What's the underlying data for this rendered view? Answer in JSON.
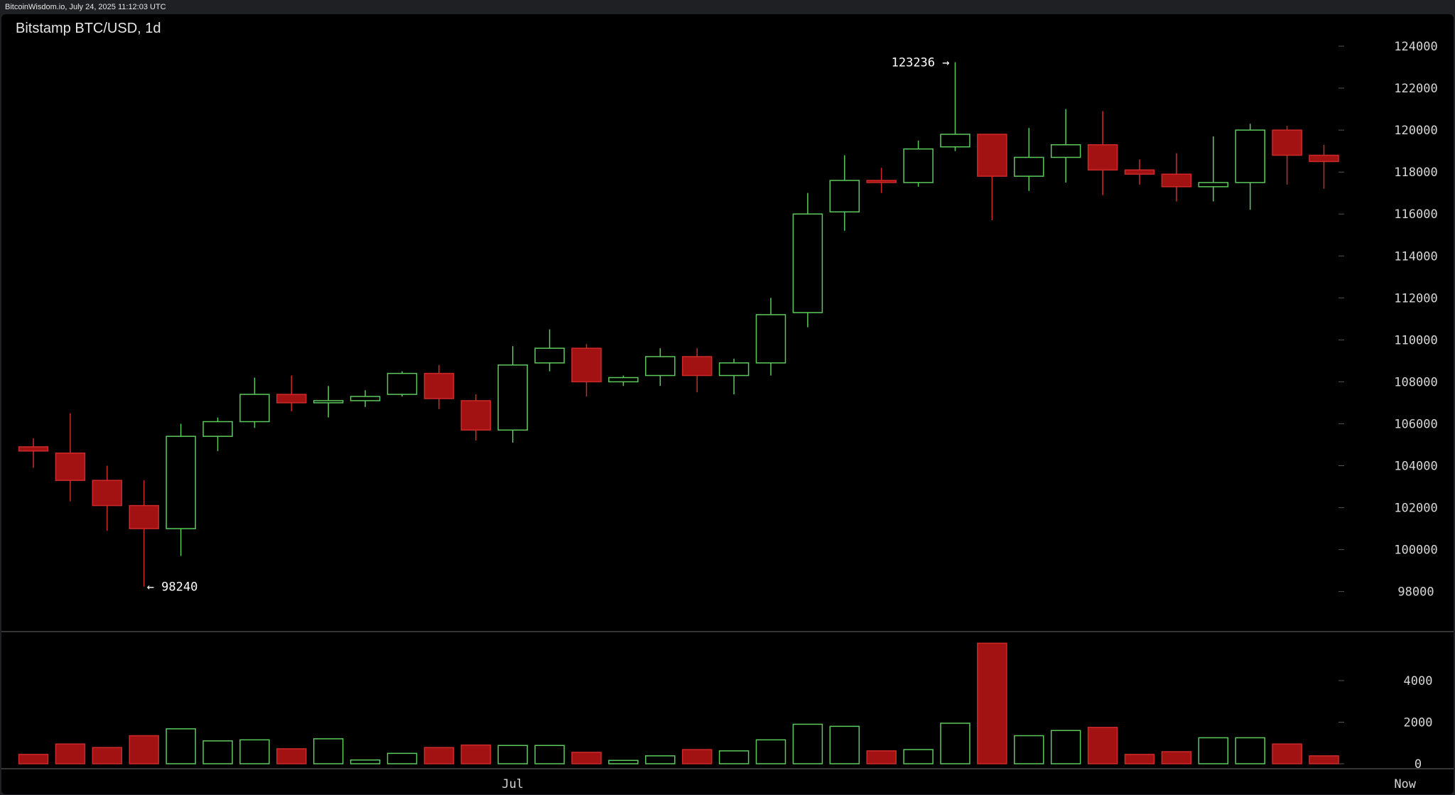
{
  "watermark": "BitcoinWisdom.io, July 24, 2025 11:12:03 UTC",
  "colors": {
    "up": "#5cc95c",
    "down": "#a31212",
    "down_border": "#cc2a2a",
    "grid_tick": "#555555",
    "axis_line": "#6a6a6a",
    "background": "#000000"
  },
  "chart_data": {
    "type": "candlestick",
    "title": "Bitstamp BTC/USD, 1d",
    "price_axis": {
      "range": [
        97000,
        124500
      ],
      "ticks": [
        98000,
        100000,
        102000,
        104000,
        106000,
        108000,
        110000,
        112000,
        114000,
        116000,
        118000,
        120000,
        122000,
        124000
      ]
    },
    "volume_axis": {
      "range": [
        0,
        6000
      ],
      "ticks": [
        0,
        2000,
        4000
      ]
    },
    "time_labels": [
      {
        "label": "Jul",
        "index": 13
      },
      {
        "label": "Now",
        "index": 37.2
      }
    ],
    "annotations": {
      "high": {
        "label": "123236 →",
        "index": 25,
        "value": 123236
      },
      "low": {
        "label": "← 98240",
        "index": 3,
        "value": 98240
      }
    },
    "candles": [
      {
        "open": 104700,
        "high": 105300,
        "low": 103900,
        "close": 104900,
        "volume": 450,
        "dir": "down"
      },
      {
        "open": 104600,
        "high": 106500,
        "low": 102300,
        "close": 103300,
        "volume": 950,
        "dir": "down"
      },
      {
        "open": 103300,
        "high": 104000,
        "low": 100900,
        "close": 102100,
        "volume": 780,
        "dir": "down"
      },
      {
        "open": 102100,
        "high": 103300,
        "low": 98240,
        "close": 101000,
        "volume": 1350,
        "dir": "down"
      },
      {
        "open": 101000,
        "high": 106000,
        "low": 99700,
        "close": 105400,
        "volume": 1680,
        "dir": "up"
      },
      {
        "open": 105400,
        "high": 106300,
        "low": 104700,
        "close": 106100,
        "volume": 1100,
        "dir": "up"
      },
      {
        "open": 106100,
        "high": 108200,
        "low": 105800,
        "close": 107400,
        "volume": 1150,
        "dir": "up"
      },
      {
        "open": 107400,
        "high": 108300,
        "low": 106600,
        "close": 107000,
        "volume": 720,
        "dir": "down"
      },
      {
        "open": 107000,
        "high": 107800,
        "low": 106300,
        "close": 107100,
        "volume": 1200,
        "dir": "up"
      },
      {
        "open": 107100,
        "high": 107600,
        "low": 106800,
        "close": 107300,
        "volume": 180,
        "dir": "up"
      },
      {
        "open": 107400,
        "high": 108500,
        "low": 107300,
        "close": 108400,
        "volume": 500,
        "dir": "up"
      },
      {
        "open": 108400,
        "high": 108800,
        "low": 106700,
        "close": 107200,
        "volume": 780,
        "dir": "down"
      },
      {
        "open": 107100,
        "high": 107400,
        "low": 105200,
        "close": 105700,
        "volume": 900,
        "dir": "down"
      },
      {
        "open": 105700,
        "high": 109700,
        "low": 105100,
        "close": 108800,
        "volume": 880,
        "dir": "up"
      },
      {
        "open": 108900,
        "high": 110500,
        "low": 108500,
        "close": 109600,
        "volume": 880,
        "dir": "up"
      },
      {
        "open": 109600,
        "high": 109800,
        "low": 107300,
        "close": 108000,
        "volume": 550,
        "dir": "down"
      },
      {
        "open": 108000,
        "high": 108300,
        "low": 107800,
        "close": 108200,
        "volume": 160,
        "dir": "up"
      },
      {
        "open": 108300,
        "high": 109600,
        "low": 107800,
        "close": 109200,
        "volume": 380,
        "dir": "up"
      },
      {
        "open": 109200,
        "high": 109600,
        "low": 107500,
        "close": 108300,
        "volume": 680,
        "dir": "down"
      },
      {
        "open": 108300,
        "high": 109100,
        "low": 107400,
        "close": 108900,
        "volume": 620,
        "dir": "up"
      },
      {
        "open": 108900,
        "high": 112000,
        "low": 108300,
        "close": 111200,
        "volume": 1150,
        "dir": "up"
      },
      {
        "open": 111300,
        "high": 117000,
        "low": 110600,
        "close": 116000,
        "volume": 1900,
        "dir": "up"
      },
      {
        "open": 116100,
        "high": 118800,
        "low": 115200,
        "close": 117600,
        "volume": 1800,
        "dir": "up"
      },
      {
        "open": 117600,
        "high": 118200,
        "low": 117000,
        "close": 117500,
        "volume": 620,
        "dir": "down"
      },
      {
        "open": 117500,
        "high": 119500,
        "low": 117300,
        "close": 119100,
        "volume": 680,
        "dir": "up"
      },
      {
        "open": 119200,
        "high": 123236,
        "low": 119000,
        "close": 119800,
        "volume": 1950,
        "dir": "up"
      },
      {
        "open": 119800,
        "high": 119800,
        "low": 115700,
        "close": 117800,
        "volume": 5800,
        "dir": "down"
      },
      {
        "open": 117800,
        "high": 120100,
        "low": 117100,
        "close": 118700,
        "volume": 1350,
        "dir": "up"
      },
      {
        "open": 118700,
        "high": 121000,
        "low": 117500,
        "close": 119300,
        "volume": 1600,
        "dir": "up"
      },
      {
        "open": 119300,
        "high": 120900,
        "low": 116900,
        "close": 118100,
        "volume": 1750,
        "dir": "down"
      },
      {
        "open": 118100,
        "high": 118600,
        "low": 117400,
        "close": 117900,
        "volume": 450,
        "dir": "down"
      },
      {
        "open": 117900,
        "high": 118900,
        "low": 116600,
        "close": 117300,
        "volume": 580,
        "dir": "down"
      },
      {
        "open": 117300,
        "high": 119700,
        "low": 116600,
        "close": 117500,
        "volume": 1250,
        "dir": "up"
      },
      {
        "open": 117500,
        "high": 120300,
        "low": 116200,
        "close": 120000,
        "volume": 1250,
        "dir": "up"
      },
      {
        "open": 120000,
        "high": 120200,
        "low": 117400,
        "close": 118800,
        "volume": 950,
        "dir": "down"
      },
      {
        "open": 118800,
        "high": 119300,
        "low": 117200,
        "close": 118500,
        "volume": 380,
        "dir": "down"
      }
    ]
  }
}
